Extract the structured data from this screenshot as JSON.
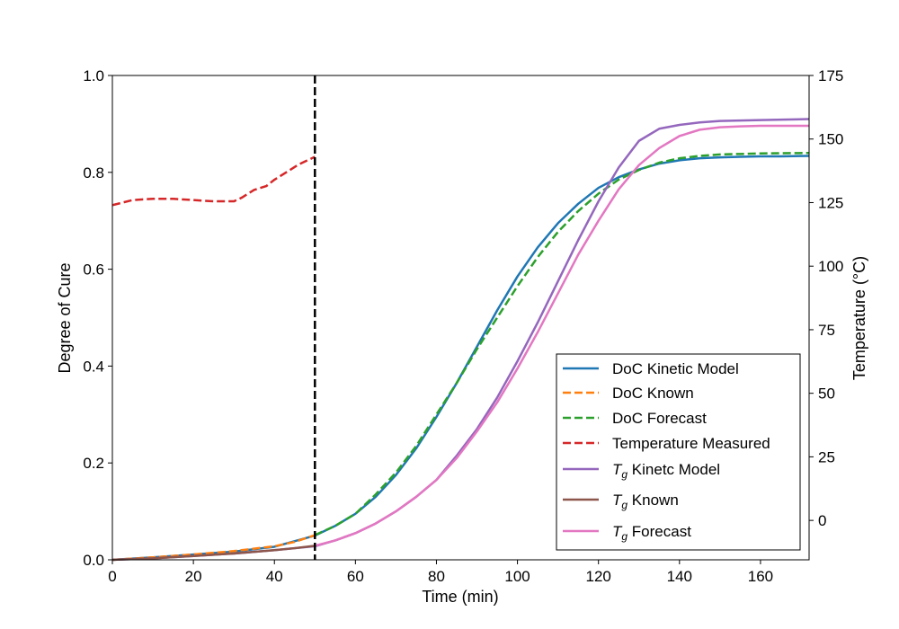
{
  "chart_data": {
    "type": "line",
    "xlabel": "Time (min)",
    "ylabel": "Degree of Cure",
    "ylabel_right": "Temperature (°C)",
    "xlim": [
      0,
      172
    ],
    "ylim": [
      0,
      1.0
    ],
    "ylim_right": [
      -15.5,
      175
    ],
    "xticks": [
      0,
      20,
      40,
      60,
      80,
      100,
      120,
      140,
      160
    ],
    "yticks": [
      0.0,
      0.2,
      0.4,
      0.6,
      0.8,
      1.0
    ],
    "yticks_right": [
      0,
      25,
      50,
      75,
      100,
      125,
      150,
      175
    ],
    "vertical_line": {
      "x": 50,
      "style": "dashed",
      "color": "#000000"
    },
    "legend_position": "lower-right",
    "series": [
      {
        "name": "DoC Kinetic Model",
        "color": "#1f77b4",
        "dash": "solid",
        "axis": "left",
        "x": [
          0,
          10,
          20,
          30,
          40,
          50,
          55,
          60,
          65,
          70,
          75,
          80,
          85,
          90,
          95,
          100,
          105,
          110,
          115,
          120,
          125,
          130,
          135,
          140,
          145,
          150,
          155,
          160,
          165,
          172
        ],
        "y": [
          0,
          0.005,
          0.011,
          0.017,
          0.027,
          0.05,
          0.07,
          0.095,
          0.13,
          0.175,
          0.23,
          0.295,
          0.365,
          0.44,
          0.515,
          0.585,
          0.645,
          0.695,
          0.735,
          0.768,
          0.79,
          0.806,
          0.818,
          0.825,
          0.829,
          0.831,
          0.832,
          0.833,
          0.833,
          0.834
        ]
      },
      {
        "name": "DoC Known",
        "color": "#ff7f0e",
        "dash": "dashed",
        "axis": "left",
        "x": [
          0,
          10,
          20,
          30,
          40,
          45,
          50
        ],
        "y": [
          0,
          0.005,
          0.011,
          0.018,
          0.028,
          0.037,
          0.051
        ]
      },
      {
        "name": "DoC Forecast",
        "color": "#2ca02c",
        "dash": "dashed",
        "axis": "left",
        "x": [
          50,
          55,
          60,
          65,
          70,
          75,
          80,
          85,
          90,
          95,
          100,
          105,
          110,
          115,
          120,
          125,
          130,
          135,
          140,
          145,
          150,
          155,
          160,
          165,
          172
        ],
        "y": [
          0.051,
          0.07,
          0.095,
          0.135,
          0.18,
          0.235,
          0.3,
          0.365,
          0.435,
          0.5,
          0.565,
          0.625,
          0.677,
          0.72,
          0.756,
          0.785,
          0.805,
          0.82,
          0.829,
          0.834,
          0.837,
          0.838,
          0.839,
          0.8395,
          0.84
        ]
      },
      {
        "name": "Temperature Measured",
        "color": "#d62728",
        "dash": "dashed",
        "axis": "right",
        "x": [
          0,
          5,
          10,
          15,
          20,
          25,
          30,
          32,
          35,
          38,
          40,
          43,
          46,
          50
        ],
        "y": [
          124,
          126,
          126.5,
          126.5,
          126,
          125.5,
          125.5,
          127,
          130,
          131.5,
          134,
          137,
          140,
          143
        ]
      },
      {
        "name": "T_g Kinetc Model",
        "color": "#9467bd",
        "dash": "solid",
        "axis": "left",
        "x": [
          0,
          10,
          20,
          30,
          40,
          50,
          55,
          60,
          65,
          70,
          75,
          80,
          85,
          90,
          95,
          100,
          105,
          110,
          115,
          120,
          125,
          130,
          135,
          140,
          145,
          150,
          160,
          172
        ],
        "y": [
          0,
          0.003,
          0.008,
          0.013,
          0.02,
          0.028,
          0.04,
          0.055,
          0.075,
          0.1,
          0.13,
          0.165,
          0.215,
          0.27,
          0.335,
          0.41,
          0.49,
          0.575,
          0.66,
          0.74,
          0.81,
          0.865,
          0.89,
          0.898,
          0.903,
          0.906,
          0.908,
          0.91
        ]
      },
      {
        "name": "T_g Known",
        "color": "#8c564b",
        "dash": "solid",
        "axis": "left",
        "x": [
          0,
          10,
          20,
          30,
          40,
          45,
          50
        ],
        "y": [
          0,
          0.003,
          0.008,
          0.013,
          0.02,
          0.024,
          0.029
        ]
      },
      {
        "name": "T_g Forecast",
        "color": "#e377c2",
        "dash": "solid",
        "axis": "left",
        "x": [
          50,
          55,
          60,
          65,
          70,
          75,
          80,
          85,
          90,
          95,
          100,
          105,
          110,
          115,
          120,
          125,
          130,
          135,
          140,
          145,
          150,
          155,
          160,
          165,
          172
        ],
        "y": [
          0.029,
          0.04,
          0.055,
          0.075,
          0.1,
          0.13,
          0.165,
          0.21,
          0.265,
          0.325,
          0.395,
          0.47,
          0.55,
          0.63,
          0.7,
          0.765,
          0.815,
          0.85,
          0.875,
          0.888,
          0.893,
          0.895,
          0.896,
          0.896,
          0.896
        ]
      }
    ]
  }
}
